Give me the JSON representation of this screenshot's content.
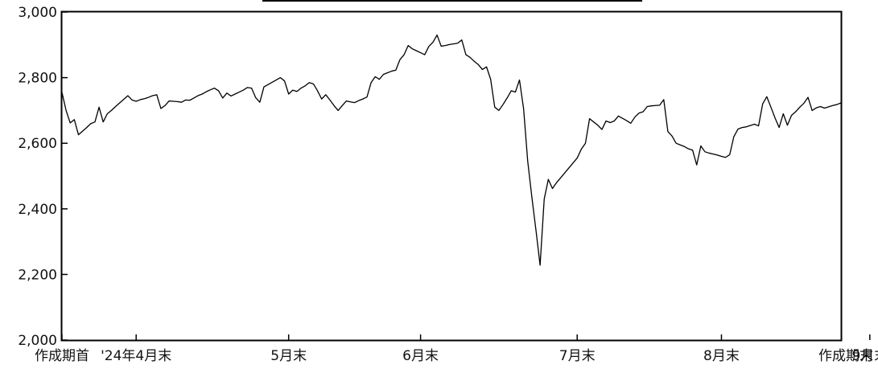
{
  "chart_data": {
    "type": "line",
    "title": "",
    "xlabel": "",
    "ylabel": "",
    "ylim": [
      2000,
      3000
    ],
    "yticks": [
      2000,
      2200,
      2400,
      2600,
      2800,
      3000
    ],
    "ytick_labels": [
      "2,000",
      "2,200",
      "2,400",
      "2,600",
      "2,800",
      "3,000"
    ],
    "xticks": [
      {
        "label": "作成期首",
        "index": 0
      },
      {
        "label": "'24年4月末",
        "index": 18
      },
      {
        "label": "5月末",
        "index": 55
      },
      {
        "label": "6月末",
        "index": 87
      },
      {
        "label": "7月末",
        "index": 125
      },
      {
        "label": "8月末",
        "index": 160
      },
      {
        "label": "9月末",
        "index": 196
      },
      {
        "label": "作成期末",
        "index": 215
      }
    ],
    "grid": false,
    "legend": "none",
    "series": [
      {
        "values": [
          2755,
          2700,
          2662,
          2672,
          2626,
          2637,
          2648,
          2660,
          2665,
          2710,
          2665,
          2690,
          2700,
          2712,
          2723,
          2734,
          2745,
          2732,
          2728,
          2733,
          2736,
          2740,
          2745,
          2748,
          2706,
          2715,
          2729,
          2728,
          2727,
          2725,
          2732,
          2731,
          2738,
          2745,
          2750,
          2757,
          2763,
          2768,
          2760,
          2738,
          2753,
          2744,
          2750,
          2756,
          2762,
          2770,
          2768,
          2739,
          2725,
          2772,
          2779,
          2786,
          2793,
          2800,
          2790,
          2750,
          2762,
          2758,
          2768,
          2775,
          2785,
          2781,
          2760,
          2735,
          2748,
          2732,
          2715,
          2700,
          2715,
          2729,
          2726,
          2724,
          2730,
          2735,
          2741,
          2785,
          2803,
          2795,
          2810,
          2815,
          2820,
          2823,
          2855,
          2870,
          2898,
          2888,
          2882,
          2876,
          2870,
          2895,
          2908,
          2930,
          2896,
          2898,
          2901,
          2903,
          2905,
          2915,
          2870,
          2862,
          2850,
          2840,
          2825,
          2833,
          2795,
          2710,
          2700,
          2718,
          2738,
          2760,
          2756,
          2793,
          2705,
          2545,
          2436,
          2335,
          2228,
          2430,
          2490,
          2462,
          2480,
          2495,
          2510,
          2525,
          2540,
          2555,
          2582,
          2600,
          2675,
          2665,
          2655,
          2642,
          2668,
          2663,
          2668,
          2683,
          2676,
          2669,
          2661,
          2680,
          2692,
          2696,
          2712,
          2714,
          2715,
          2716,
          2733,
          2636,
          2622,
          2600,
          2595,
          2590,
          2583,
          2579,
          2534,
          2592,
          2574,
          2570,
          2567,
          2564,
          2560,
          2557,
          2565,
          2620,
          2643,
          2648,
          2650,
          2654,
          2658,
          2653,
          2720,
          2742,
          2710,
          2677,
          2648,
          2690,
          2655,
          2685,
          2696,
          2710,
          2722,
          2740,
          2700,
          2708,
          2712,
          2707,
          2711,
          2715,
          2718,
          2723
        ]
      }
    ]
  }
}
